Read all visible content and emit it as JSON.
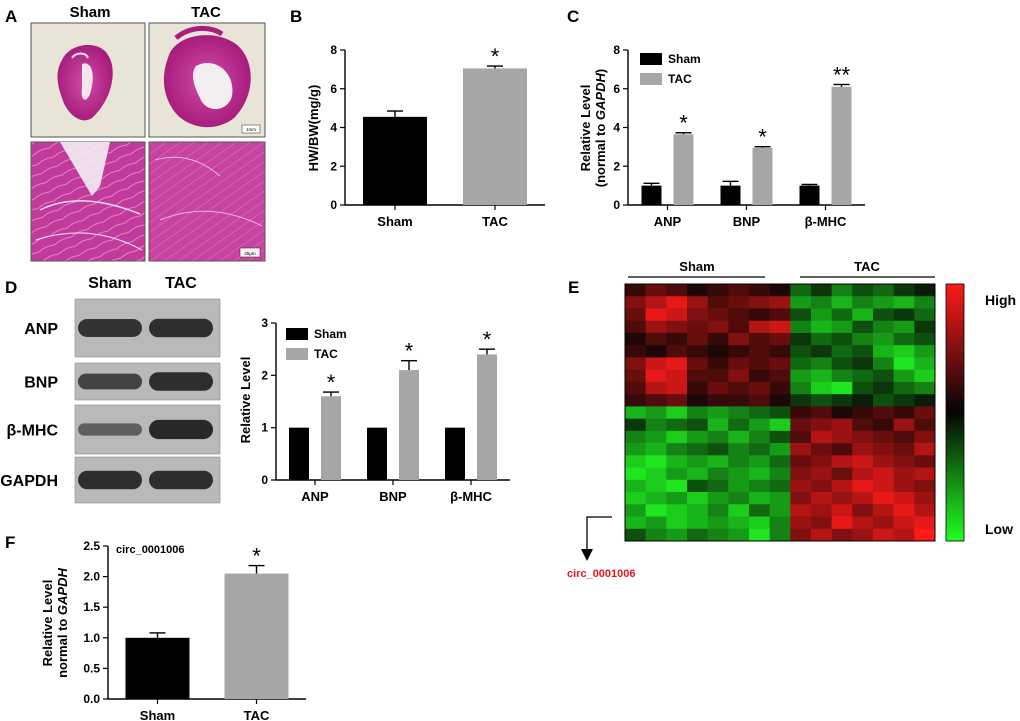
{
  "panel_labels": {
    "a": "A",
    "b": "B",
    "c": "C",
    "d": "D",
    "e": "E",
    "f": "F"
  },
  "panel_a": {
    "group_labels": [
      "Sham",
      "TAC"
    ],
    "scale_bar_top": "1mm",
    "scale_bar_bottom": "25μm"
  },
  "panel_d_blot": {
    "group_labels": [
      "Sham",
      "TAC"
    ],
    "rows": [
      {
        "label": "ANP",
        "sham": 0.85,
        "tac": 0.9
      },
      {
        "label": "BNP",
        "sham": 0.7,
        "tac": 0.9
      },
      {
        "label": "β-MHC",
        "sham": 0.45,
        "tac": 0.95
      },
      {
        "label": "GAPDH",
        "sham": 0.9,
        "tac": 0.9
      }
    ]
  },
  "panel_e": {
    "group_labels": [
      "Sham",
      "TAC"
    ],
    "legend_high": "High",
    "legend_low": "Low",
    "highlight_label": "circ_0001006",
    "colors": {
      "high": "#ff1a1a",
      "mid": "#050505",
      "low": "#22ff22"
    },
    "heatmap": [
      [
        0.2,
        0.4,
        0.3,
        0.1,
        0.2,
        0.3,
        0.2,
        0.1,
        -0.4,
        -0.2,
        -0.5,
        -0.3,
        -0.4,
        -0.2,
        -0.1
      ],
      [
        0.5,
        0.7,
        0.9,
        0.6,
        0.3,
        0.4,
        0.5,
        0.6,
        -0.6,
        -0.5,
        -0.7,
        -0.5,
        -0.6,
        -0.7,
        -0.5
      ],
      [
        0.4,
        0.9,
        0.8,
        0.5,
        0.4,
        0.3,
        0.2,
        0.3,
        -0.3,
        -0.6,
        -0.4,
        -0.7,
        -0.3,
        -0.2,
        -0.4
      ],
      [
        0.3,
        0.6,
        0.5,
        0.4,
        0.5,
        0.3,
        0.7,
        0.8,
        -0.5,
        -0.7,
        -0.6,
        -0.3,
        -0.5,
        -0.6,
        -0.2
      ],
      [
        0.1,
        0.3,
        0.2,
        0.4,
        0.2,
        0.5,
        0.3,
        0.4,
        -0.2,
        -0.4,
        -0.3,
        -0.5,
        -0.6,
        -0.4,
        -0.3
      ],
      [
        0.2,
        0.1,
        0.3,
        0.2,
        0.1,
        0.2,
        0.3,
        0.2,
        -0.3,
        -0.2,
        -0.4,
        -0.3,
        -0.7,
        -0.8,
        -0.6
      ],
      [
        0.5,
        0.8,
        0.9,
        0.4,
        0.2,
        0.4,
        0.3,
        0.4,
        -0.4,
        -0.5,
        -0.3,
        -0.2,
        -0.5,
        -0.9,
        -0.7
      ],
      [
        0.4,
        0.9,
        0.8,
        0.3,
        0.3,
        0.5,
        0.2,
        0.3,
        -0.6,
        -0.7,
        -0.5,
        -0.4,
        -0.3,
        -0.6,
        -0.8
      ],
      [
        0.3,
        0.7,
        0.8,
        0.2,
        0.4,
        0.3,
        0.4,
        0.2,
        -0.5,
        -0.8,
        -0.9,
        -0.3,
        -0.2,
        -0.4,
        -0.5
      ],
      [
        0.2,
        0.3,
        0.4,
        0.1,
        0.2,
        0.2,
        0.3,
        0.1,
        -0.2,
        -0.3,
        -0.2,
        -0.1,
        -0.3,
        -0.2,
        -0.1
      ],
      [
        -0.7,
        -0.6,
        -0.8,
        -0.5,
        -0.6,
        -0.5,
        -0.4,
        -0.3,
        0.2,
        0.3,
        0.1,
        0.2,
        0.3,
        0.2,
        0.4
      ],
      [
        -0.2,
        -0.5,
        -0.4,
        -0.3,
        -0.7,
        -0.4,
        -0.6,
        -0.8,
        0.4,
        0.5,
        0.6,
        0.3,
        0.2,
        0.6,
        0.3
      ],
      [
        -0.5,
        -0.6,
        -0.8,
        -0.6,
        -0.5,
        -0.7,
        -0.5,
        -0.3,
        0.3,
        0.7,
        0.6,
        0.5,
        0.4,
        0.3,
        0.5
      ],
      [
        -0.6,
        -0.7,
        -0.5,
        -0.4,
        -0.3,
        -0.5,
        -0.4,
        -0.6,
        0.6,
        0.4,
        0.3,
        0.6,
        0.5,
        0.4,
        0.7
      ],
      [
        -0.8,
        -0.9,
        -0.7,
        -0.6,
        -0.7,
        -0.5,
        -0.6,
        -0.4,
        0.4,
        0.5,
        0.7,
        0.8,
        0.6,
        0.5,
        0.4
      ],
      [
        -0.9,
        -0.8,
        -0.6,
        -0.7,
        -0.5,
        -0.6,
        -0.7,
        -0.5,
        0.5,
        0.6,
        0.4,
        0.7,
        0.8,
        0.6,
        0.7
      ],
      [
        -0.7,
        -0.8,
        -0.9,
        -0.3,
        -0.4,
        -0.6,
        -0.5,
        -0.4,
        0.6,
        0.5,
        0.7,
        0.9,
        0.8,
        0.6,
        0.5
      ],
      [
        -0.8,
        -0.7,
        -0.6,
        -0.8,
        -0.6,
        -0.5,
        -0.7,
        -0.6,
        0.5,
        0.7,
        0.6,
        0.7,
        0.9,
        0.8,
        0.6
      ],
      [
        -0.6,
        -0.9,
        -0.8,
        -0.7,
        -0.5,
        -0.8,
        -0.4,
        -0.6,
        0.7,
        0.6,
        0.8,
        0.5,
        0.7,
        0.9,
        0.7
      ],
      [
        -0.7,
        -0.6,
        -0.8,
        -0.7,
        -0.6,
        -0.7,
        -0.8,
        -0.5,
        0.6,
        0.5,
        0.9,
        0.7,
        0.6,
        0.8,
        0.9
      ],
      [
        -0.3,
        -0.5,
        -0.6,
        -0.4,
        -0.5,
        -0.6,
        -0.9,
        -0.5,
        0.5,
        0.7,
        0.5,
        0.6,
        0.8,
        0.7,
        1.0
      ]
    ]
  },
  "chart_data": [
    {
      "id": "B",
      "type": "bar",
      "categories": [
        "Sham",
        "TAC"
      ],
      "values": [
        4.55,
        7.05
      ],
      "errors": [
        0.3,
        0.12
      ],
      "colors": [
        "#000000",
        "#a6a6a6"
      ],
      "significance": [
        "",
        "*"
      ],
      "ylabel": "HW/BW(mg/g)",
      "ylim": [
        0,
        8
      ],
      "yticks": [
        "0",
        "2",
        "4",
        "6",
        "8"
      ]
    },
    {
      "id": "C",
      "type": "bar",
      "categories": [
        "ANP",
        "BNP",
        "β-MHC"
      ],
      "series": [
        {
          "name": "Sham",
          "values": [
            1.0,
            1.0,
            1.0
          ],
          "errors": [
            0.12,
            0.22,
            0.06
          ],
          "color": "#000000"
        },
        {
          "name": "TAC",
          "values": [
            3.65,
            2.95,
            6.1
          ],
          "errors": [
            0.08,
            0.06,
            0.12
          ],
          "color": "#a6a6a6"
        }
      ],
      "significance": [
        "*",
        "*",
        "**"
      ],
      "ylabel_line1": "Relative Level",
      "ylabel_line2_prefix": "(normal to ",
      "ylabel_line2_gene": "GAPDH",
      "ylabel_line2_suffix": ")",
      "ylim": [
        0,
        8
      ],
      "yticks": [
        "0",
        "2",
        "4",
        "6",
        "8"
      ]
    },
    {
      "id": "D",
      "type": "bar",
      "categories": [
        "ANP",
        "BNP",
        "β-MHC"
      ],
      "series": [
        {
          "name": "Sham",
          "values": [
            1.0,
            1.0,
            1.0
          ],
          "errors": [
            0,
            0,
            0
          ],
          "color": "#000000"
        },
        {
          "name": "TAC",
          "values": [
            1.6,
            2.1,
            2.4
          ],
          "errors": [
            0.08,
            0.18,
            0.1
          ],
          "color": "#a6a6a6"
        }
      ],
      "significance": [
        "*",
        "*",
        "*"
      ],
      "ylabel": "Relative Level",
      "ylim": [
        0,
        3
      ],
      "yticks": [
        "0",
        "1",
        "2",
        "3"
      ]
    },
    {
      "id": "F",
      "type": "bar",
      "categories": [
        "Sham",
        "TAC"
      ],
      "values": [
        1.0,
        2.05
      ],
      "errors": [
        0.08,
        0.13
      ],
      "colors": [
        "#000000",
        "#a6a6a6"
      ],
      "significance": [
        "",
        "*"
      ],
      "annotation": "circ_0001006",
      "ylabel_line1": "Relative Level",
      "ylabel_line2_prefix": "normal to ",
      "ylabel_line2_gene": "GAPDH",
      "ylim": [
        0,
        2.5
      ],
      "yticks": [
        "0.0",
        "0.5",
        "1.0",
        "1.5",
        "2.0",
        "2.5"
      ]
    }
  ]
}
